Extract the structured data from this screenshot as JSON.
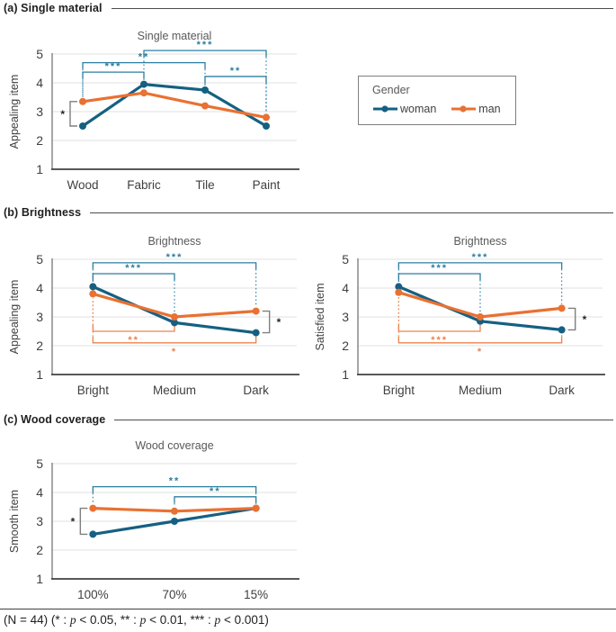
{
  "colors": {
    "woman": "#156082",
    "man": "#E97132",
    "sig_woman": "#2B7EA1",
    "sig_man": "#EB834C",
    "pair_bracket": "#7F7F7F",
    "pair_label": "#262626",
    "grid": "#E2E2E2",
    "axis_y": "#808080",
    "axis_x": "#404040",
    "title": "#595959",
    "tick": "#404040"
  },
  "sections": [
    {
      "label": "(a) Single material"
    },
    {
      "label": "(b) Brightness"
    },
    {
      "label": "(c) Wood coverage"
    }
  ],
  "legend": {
    "title": "Gender",
    "items": [
      {
        "label": "woman",
        "color": "woman"
      },
      {
        "label": "man",
        "color": "man"
      }
    ]
  },
  "footer": {
    "parts": [
      {
        "t": "(N = 44) (* : "
      },
      {
        "t": "p",
        "i": true
      },
      {
        "t": " < 0.05, ** : "
      },
      {
        "t": "p",
        "i": true
      },
      {
        "t": " < 0.01, *** : "
      },
      {
        "t": "p",
        "i": true
      },
      {
        "t": " < 0.001)"
      }
    ]
  },
  "chart_data": [
    {
      "type": "line",
      "title": "Single material",
      "ylabel": "Appealing item",
      "categories": [
        "Wood",
        "Fabric",
        "Tile",
        "Paint"
      ],
      "ylim": [
        1,
        5
      ],
      "yticks": [
        1,
        2,
        3,
        4,
        5
      ],
      "series": [
        {
          "name": "woman",
          "color": "woman",
          "values": [
            2.5,
            3.95,
            3.75,
            2.5
          ]
        },
        {
          "name": "man",
          "color": "man",
          "values": [
            3.35,
            3.65,
            3.2,
            2.8
          ]
        }
      ],
      "sig_brackets": [
        {
          "from": 0,
          "to": 1,
          "label": "***",
          "level": 4.37,
          "position": "top",
          "color": "sig_woman"
        },
        {
          "from": 0,
          "to": 2,
          "label": "**",
          "level": 4.7,
          "position": "top",
          "color": "sig_woman"
        },
        {
          "from": 1,
          "to": 3,
          "label": "***",
          "level": 5.12,
          "position": "top",
          "color": "sig_woman"
        },
        {
          "from": 2,
          "to": 3,
          "label": "**",
          "level": 4.22,
          "position": "top",
          "color": "sig_woman"
        }
      ],
      "pair_brackets": [
        {
          "at": 0,
          "side": "left",
          "label": "*",
          "high": 3.35,
          "low": 2.5
        }
      ]
    },
    {
      "type": "line",
      "title": "Brightness",
      "ylabel": "Appealing item",
      "categories": [
        "Bright",
        "Medium",
        "Dark"
      ],
      "ylim": [
        1,
        5
      ],
      "yticks": [
        1,
        2,
        3,
        4,
        5
      ],
      "series": [
        {
          "name": "woman",
          "color": "woman",
          "values": [
            4.05,
            2.8,
            2.45
          ]
        },
        {
          "name": "man",
          "color": "man",
          "values": [
            3.8,
            3.0,
            3.2
          ]
        }
      ],
      "sig_brackets": [
        {
          "from": 0,
          "to": 1,
          "label": "***",
          "level": 4.5,
          "position": "top",
          "color": "sig_woman"
        },
        {
          "from": 0,
          "to": 2,
          "label": "***",
          "level": 4.88,
          "position": "top",
          "color": "sig_woman"
        },
        {
          "from": 0,
          "to": 1,
          "label": "**",
          "level": 2.5,
          "position": "bottom",
          "color": "sig_man"
        },
        {
          "from": 0,
          "to": 2,
          "label": "*",
          "level": 2.1,
          "position": "bottom",
          "color": "sig_man"
        }
      ],
      "pair_brackets": [
        {
          "at": 2,
          "side": "right",
          "label": "*",
          "high": 3.2,
          "low": 2.45
        }
      ]
    },
    {
      "type": "line",
      "title": "Brightness",
      "ylabel": "Satisfied item",
      "categories": [
        "Bright",
        "Medium",
        "Dark"
      ],
      "ylim": [
        1,
        5
      ],
      "yticks": [
        1,
        2,
        3,
        4,
        5
      ],
      "series": [
        {
          "name": "woman",
          "color": "woman",
          "values": [
            4.05,
            2.85,
            2.55
          ]
        },
        {
          "name": "man",
          "color": "man",
          "values": [
            3.85,
            3.0,
            3.3
          ]
        }
      ],
      "sig_brackets": [
        {
          "from": 0,
          "to": 1,
          "label": "***",
          "level": 4.5,
          "position": "top",
          "color": "sig_woman"
        },
        {
          "from": 0,
          "to": 2,
          "label": "***",
          "level": 4.88,
          "position": "top",
          "color": "sig_woman"
        },
        {
          "from": 0,
          "to": 1,
          "label": "***",
          "level": 2.5,
          "position": "bottom",
          "color": "sig_man"
        },
        {
          "from": 0,
          "to": 2,
          "label": "*",
          "level": 2.1,
          "position": "bottom",
          "color": "sig_man"
        }
      ],
      "pair_brackets": [
        {
          "at": 2,
          "side": "right",
          "label": "*",
          "high": 3.3,
          "low": 2.55
        }
      ]
    },
    {
      "type": "line",
      "title": "Wood coverage",
      "ylabel": "Smooth item",
      "categories": [
        "100%",
        "70%",
        "15%"
      ],
      "ylim": [
        1,
        5
      ],
      "yticks": [
        1,
        2,
        3,
        4,
        5
      ],
      "series": [
        {
          "name": "woman",
          "color": "woman",
          "values": [
            2.55,
            3.0,
            3.45
          ]
        },
        {
          "name": "man",
          "color": "man",
          "values": [
            3.45,
            3.35,
            3.45
          ]
        }
      ],
      "sig_brackets": [
        {
          "from": 0,
          "to": 2,
          "label": "**",
          "level": 4.2,
          "position": "top",
          "color": "sig_woman"
        },
        {
          "from": 1,
          "to": 2,
          "label": "**",
          "level": 3.85,
          "position": "top",
          "color": "sig_woman"
        }
      ],
      "pair_brackets": [
        {
          "at": 0,
          "side": "left",
          "label": "*",
          "high": 3.45,
          "low": 2.55
        }
      ]
    }
  ]
}
